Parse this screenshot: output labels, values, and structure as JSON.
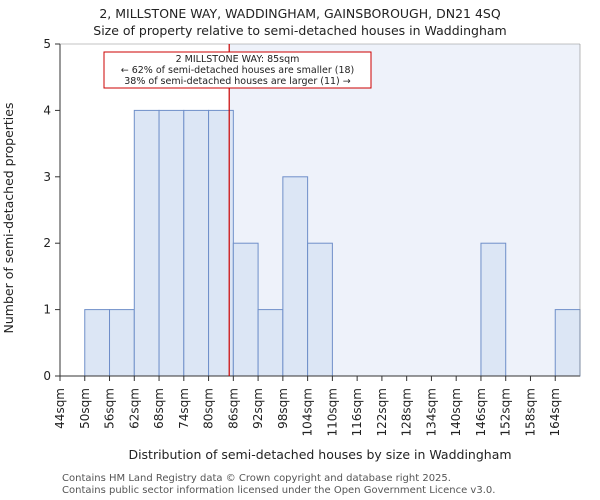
{
  "header": {
    "title_line1": "2, MILLSTONE WAY, WADDINGHAM, GAINSBOROUGH, DN21 4SQ",
    "title_line2": "Size of property relative to semi-detached houses in Waddingham"
  },
  "chart_data": {
    "type": "bar",
    "title": "2, MILLSTONE WAY, WADDINGHAM, GAINSBOROUGH, DN21 4SQ",
    "subtitle": "Size of property relative to semi-detached houses in Waddingham",
    "xlabel": "Distribution of semi-detached houses by size in Waddingham",
    "ylabel": "Number of semi-detached properties",
    "categories": [
      "44sqm",
      "50sqm",
      "56sqm",
      "62sqm",
      "68sqm",
      "74sqm",
      "80sqm",
      "86sqm",
      "92sqm",
      "98sqm",
      "104sqm",
      "110sqm",
      "116sqm",
      "122sqm",
      "128sqm",
      "134sqm",
      "140sqm",
      "146sqm",
      "152sqm",
      "158sqm",
      "164sqm"
    ],
    "bin_edges": [
      44,
      50,
      56,
      62,
      68,
      74,
      80,
      86,
      92,
      98,
      104,
      110,
      116,
      122,
      128,
      134,
      140,
      146,
      152,
      158,
      164,
      170
    ],
    "values": [
      0,
      1,
      1,
      4,
      4,
      4,
      4,
      2,
      1,
      3,
      2,
      0,
      0,
      0,
      0,
      0,
      0,
      2,
      0,
      0,
      1
    ],
    "ylim": [
      0,
      5
    ],
    "yticks": [
      0,
      1,
      2,
      3,
      4,
      5
    ],
    "property_value": 85,
    "grid": false,
    "annotation": {
      "line1": "2 MILLSTONE WAY: 85sqm",
      "line2": "← 62% of semi-detached houses are smaller (18)",
      "line3": "38% of semi-detached houses are larger (11) →"
    },
    "colors": {
      "bar_fill": "#dce6f5",
      "bar_stroke": "#6f8fc9",
      "highlight_bg": "#eef2fa",
      "marker": "#cc0000",
      "axis": "#333333"
    }
  },
  "footer": {
    "line1": "Contains HM Land Registry data © Crown copyright and database right 2025.",
    "line2": "Contains public sector information licensed under the Open Government Licence v3.0."
  }
}
